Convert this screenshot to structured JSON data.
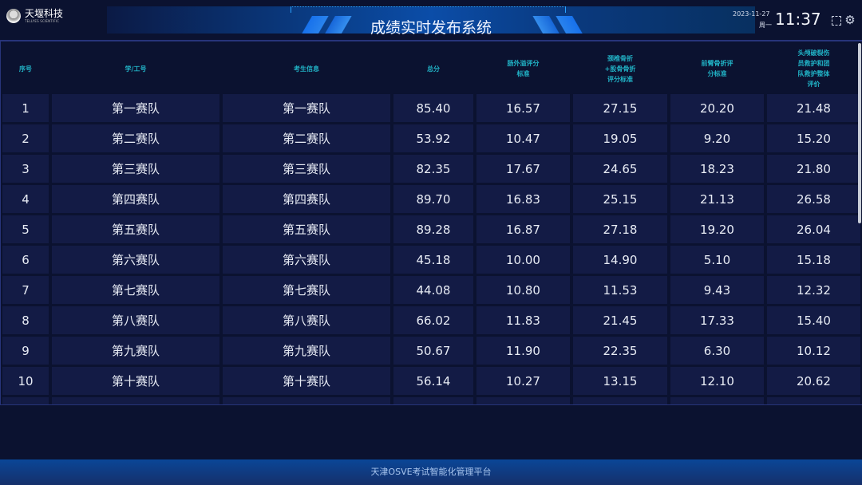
{
  "brand": {
    "name": "天堰科技",
    "subtitle": "TELLYES SCIENTIFIC"
  },
  "header": {
    "title": "成绩实时发布系统",
    "date": "2023-11-27",
    "weekday": "周一",
    "time": "11:37",
    "icons": [
      "fullscreen-icon",
      "gear-icon"
    ]
  },
  "table": {
    "columns": [
      "序号",
      "学/工号",
      "考生信息",
      "总分",
      "肠外溢评分\n标准",
      "颈椎骨折\n+股骨骨折\n评分标准",
      "前臂骨折评\n分标准",
      "头颅破裂伤\n员救护和团\n队救护整体\n评价"
    ],
    "rows": [
      [
        "1",
        "第一赛队",
        "第一赛队",
        "85.40",
        "16.57",
        "27.15",
        "20.20",
        "21.48"
      ],
      [
        "2",
        "第二赛队",
        "第二赛队",
        "53.92",
        "10.47",
        "19.05",
        "9.20",
        "15.20"
      ],
      [
        "3",
        "第三赛队",
        "第三赛队",
        "82.35",
        "17.67",
        "24.65",
        "18.23",
        "21.80"
      ],
      [
        "4",
        "第四赛队",
        "第四赛队",
        "89.70",
        "16.83",
        "25.15",
        "21.13",
        "26.58"
      ],
      [
        "5",
        "第五赛队",
        "第五赛队",
        "89.28",
        "16.87",
        "27.18",
        "19.20",
        "26.04"
      ],
      [
        "6",
        "第六赛队",
        "第六赛队",
        "45.18",
        "10.00",
        "14.90",
        "5.10",
        "15.18"
      ],
      [
        "7",
        "第七赛队",
        "第七赛队",
        "44.08",
        "10.80",
        "11.53",
        "9.43",
        "12.32"
      ],
      [
        "8",
        "第八赛队",
        "第八赛队",
        "66.02",
        "11.83",
        "21.45",
        "17.33",
        "15.40"
      ],
      [
        "9",
        "第九赛队",
        "第九赛队",
        "50.67",
        "11.90",
        "22.35",
        "6.30",
        "10.12"
      ],
      [
        "10",
        "第十赛队",
        "第十赛队",
        "56.14",
        "10.27",
        "13.15",
        "12.10",
        "20.62"
      ]
    ]
  },
  "footer": {
    "text": "天津OSVE考试智能化管理平台"
  },
  "colors": {
    "background": "#0b1230",
    "cell": "#131b45",
    "header_text": "#21b3c6",
    "banner": "#0b4da8"
  }
}
